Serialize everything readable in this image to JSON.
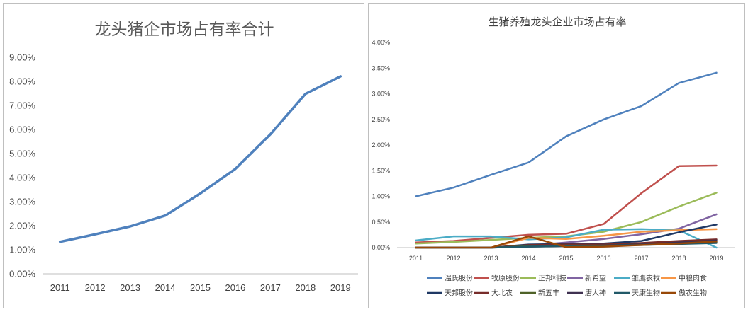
{
  "chart_data": [
    {
      "type": "line",
      "title": "龙头猪企市场占有率合计",
      "categories": [
        "2011",
        "2012",
        "2013",
        "2014",
        "2015",
        "2016",
        "2017",
        "2018",
        "2019"
      ],
      "y_tick_labels": [
        "0.00%",
        "1.00%",
        "2.00%",
        "3.00%",
        "4.00%",
        "5.00%",
        "6.00%",
        "7.00%",
        "8.00%",
        "9.00%"
      ],
      "ylim": [
        0,
        9
      ],
      "grid": false,
      "series": [
        {
          "name": "",
          "color": "#4f81bd",
          "values": [
            1.33,
            1.64,
            1.97,
            2.42,
            3.34,
            4.36,
            5.8,
            7.48,
            8.21
          ]
        }
      ]
    },
    {
      "type": "line",
      "title": "生猪养殖龙头企业市场占有率",
      "categories": [
        "2011",
        "2012",
        "2013",
        "2014",
        "2015",
        "2016",
        "2017",
        "2018",
        "2019"
      ],
      "y_tick_labels": [
        "0.00%",
        "0.50%",
        "1.00%",
        "1.50%",
        "2.00%",
        "2.50%",
        "3.00%",
        "3.50%",
        "4.00%"
      ],
      "ylim": [
        0,
        4
      ],
      "grid": false,
      "legend_position": "bottom",
      "series": [
        {
          "name": "温氏股份",
          "color": "#4f81bd",
          "values": [
            1.0,
            1.17,
            1.42,
            1.66,
            2.17,
            2.5,
            2.76,
            3.21,
            3.41
          ]
        },
        {
          "name": "牧原股份",
          "color": "#c0504d",
          "values": [
            0.1,
            0.13,
            0.19,
            0.25,
            0.27,
            0.46,
            1.06,
            1.59,
            1.6
          ]
        },
        {
          "name": "正邦科技",
          "color": "#9bbb59",
          "values": [
            0.08,
            0.11,
            0.15,
            0.19,
            0.22,
            0.31,
            0.5,
            0.8,
            1.07
          ]
        },
        {
          "name": "新希望",
          "color": "#8064a2",
          "values": [
            0.0,
            0.0,
            0.0,
            0.04,
            0.1,
            0.17,
            0.26,
            0.37,
            0.65
          ]
        },
        {
          "name": "雏鹰农牧",
          "color": "#4bacc6",
          "values": [
            0.14,
            0.22,
            0.22,
            0.16,
            0.2,
            0.35,
            0.36,
            0.34,
            0.0
          ]
        },
        {
          "name": "中粮肉食",
          "color": "#f79646",
          "values": [
            0.0,
            0.0,
            0.0,
            0.19,
            0.17,
            0.23,
            0.31,
            0.34,
            0.36
          ]
        },
        {
          "name": "天邦股份",
          "color": "#1f3864",
          "values": [
            0.0,
            0.0,
            0.0,
            0.06,
            0.07,
            0.08,
            0.13,
            0.3,
            0.45
          ]
        },
        {
          "name": "大北农",
          "color": "#772c2a",
          "values": [
            0.0,
            0.0,
            0.0,
            0.05,
            0.06,
            0.06,
            0.09,
            0.13,
            0.16
          ]
        },
        {
          "name": "新五丰",
          "color": "#4f6228",
          "values": [
            0.0,
            0.0,
            0.0,
            0.03,
            0.04,
            0.04,
            0.06,
            0.08,
            0.1
          ]
        },
        {
          "name": "唐人神",
          "color": "#3f3151",
          "values": [
            0.0,
            0.0,
            0.0,
            0.02,
            0.03,
            0.04,
            0.06,
            0.1,
            0.14
          ]
        },
        {
          "name": "天康生物",
          "color": "#215968",
          "values": [
            0.0,
            0.0,
            0.0,
            0.02,
            0.03,
            0.04,
            0.05,
            0.07,
            0.09
          ]
        },
        {
          "name": "傲农生物",
          "color": "#984807",
          "values": [
            0.0,
            0.0,
            0.0,
            0.22,
            0.01,
            0.02,
            0.05,
            0.08,
            0.12
          ]
        }
      ]
    }
  ]
}
